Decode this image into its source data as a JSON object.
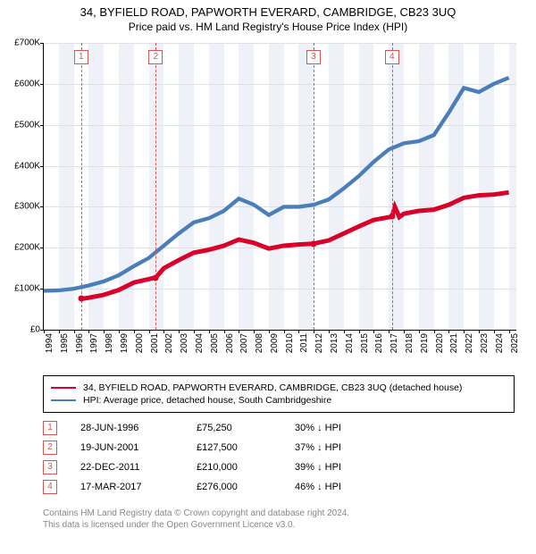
{
  "title": "34, BYFIELD ROAD, PAPWORTH EVERARD, CAMBRIDGE, CB23 3UQ",
  "subtitle": "Price paid vs. HM Land Registry's House Price Index (HPI)",
  "chart": {
    "type": "line",
    "background_color": "#ffffff",
    "altband_color": "#eef2f8",
    "grid_color": "#e0e0e0",
    "axis_color": "#000000",
    "xlim": [
      1994,
      2025.5
    ],
    "ylim": [
      0,
      700000
    ],
    "ytick_step": 100000,
    "yticks": [
      "£0",
      "£100K",
      "£200K",
      "£300K",
      "£400K",
      "£500K",
      "£600K",
      "£700K"
    ],
    "xticks": [
      1994,
      1995,
      1996,
      1997,
      1998,
      1999,
      2000,
      2001,
      2002,
      2003,
      2004,
      2005,
      2006,
      2007,
      2008,
      2009,
      2010,
      2011,
      2012,
      2013,
      2014,
      2015,
      2016,
      2017,
      2018,
      2019,
      2020,
      2021,
      2022,
      2023,
      2024,
      2025
    ],
    "altband_start": 1995,
    "altband_width_years": 1,
    "marker_line_color": "#d9534f",
    "marker_box_border": "#d9534f",
    "marker_box_text_color": "#d9534f",
    "series": [
      {
        "name": "property",
        "color": "#d9002a",
        "width": 1.6,
        "points": [
          [
            1996.49,
            75250
          ],
          [
            1997,
            78000
          ],
          [
            1998,
            85000
          ],
          [
            1999,
            97000
          ],
          [
            2000,
            115000
          ],
          [
            2001.47,
            127500
          ],
          [
            2002,
            150000
          ],
          [
            2003,
            170000
          ],
          [
            2004,
            188000
          ],
          [
            2005,
            195000
          ],
          [
            2006,
            205000
          ],
          [
            2007,
            220000
          ],
          [
            2008,
            212000
          ],
          [
            2009,
            198000
          ],
          [
            2010,
            205000
          ],
          [
            2011,
            208000
          ],
          [
            2011.98,
            210000
          ],
          [
            2013,
            218000
          ],
          [
            2014,
            235000
          ],
          [
            2015,
            252000
          ],
          [
            2016,
            268000
          ],
          [
            2017.21,
            276000
          ],
          [
            2017.4,
            300000
          ],
          [
            2017.7,
            275000
          ],
          [
            2018,
            283000
          ],
          [
            2019,
            290000
          ],
          [
            2020,
            293000
          ],
          [
            2021,
            305000
          ],
          [
            2022,
            322000
          ],
          [
            2023,
            328000
          ],
          [
            2024,
            330000
          ],
          [
            2025,
            335000
          ]
        ],
        "sale_markers": [
          {
            "x": 1996.49,
            "y": 75250
          },
          {
            "x": 2001.47,
            "y": 127500
          },
          {
            "x": 2011.98,
            "y": 210000
          },
          {
            "x": 2017.21,
            "y": 276000
          }
        ]
      },
      {
        "name": "hpi",
        "color": "#4a7ebb",
        "width": 1.4,
        "points": [
          [
            1994,
            95000
          ],
          [
            1995,
            96000
          ],
          [
            1996,
            100000
          ],
          [
            1997,
            108000
          ],
          [
            1998,
            118000
          ],
          [
            1999,
            133000
          ],
          [
            2000,
            155000
          ],
          [
            2001,
            175000
          ],
          [
            2002,
            205000
          ],
          [
            2003,
            235000
          ],
          [
            2004,
            262000
          ],
          [
            2005,
            272000
          ],
          [
            2006,
            290000
          ],
          [
            2007,
            320000
          ],
          [
            2008,
            305000
          ],
          [
            2009,
            280000
          ],
          [
            2010,
            300000
          ],
          [
            2011,
            300000
          ],
          [
            2012,
            305000
          ],
          [
            2013,
            318000
          ],
          [
            2014,
            345000
          ],
          [
            2015,
            375000
          ],
          [
            2016,
            410000
          ],
          [
            2017,
            440000
          ],
          [
            2018,
            455000
          ],
          [
            2019,
            460000
          ],
          [
            2020,
            475000
          ],
          [
            2021,
            530000
          ],
          [
            2022,
            590000
          ],
          [
            2023,
            580000
          ],
          [
            2024,
            600000
          ],
          [
            2025,
            615000
          ]
        ]
      }
    ],
    "markers": [
      {
        "n": "1",
        "x": 1996.49
      },
      {
        "n": "2",
        "x": 2001.47
      },
      {
        "n": "3",
        "x": 2011.98
      },
      {
        "n": "4",
        "x": 2017.21
      }
    ]
  },
  "legend": {
    "items": [
      {
        "color": "#d9002a",
        "label": "34, BYFIELD ROAD, PAPWORTH EVERARD, CAMBRIDGE, CB23 3UQ (detached house)"
      },
      {
        "color": "#4a7ebb",
        "label": "HPI: Average price, detached house, South Cambridgeshire"
      }
    ]
  },
  "transactions": [
    {
      "n": "1",
      "date": "28-JUN-1996",
      "price": "£75,250",
      "diff": "30% ↓ HPI"
    },
    {
      "n": "2",
      "date": "19-JUN-2001",
      "price": "£127,500",
      "diff": "37% ↓ HPI"
    },
    {
      "n": "3",
      "date": "22-DEC-2011",
      "price": "£210,000",
      "diff": "39% ↓ HPI"
    },
    {
      "n": "4",
      "date": "17-MAR-2017",
      "price": "£276,000",
      "diff": "46% ↓ HPI"
    }
  ],
  "footer": {
    "line1": "Contains HM Land Registry data © Crown copyright and database right 2024.",
    "line2": "This data is licensed under the Open Government Licence v3.0."
  },
  "colors": {
    "footer_text": "#888888",
    "marker": "#d9534f"
  }
}
